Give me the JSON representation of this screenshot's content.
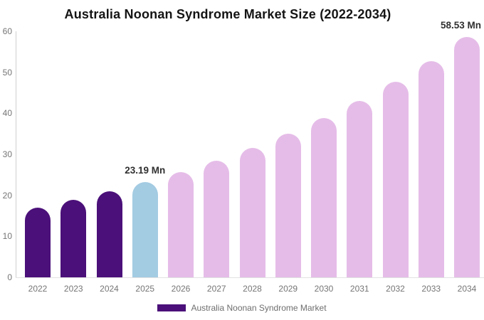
{
  "title": "Australia Noonan Syndrome Market Size (2022-2034)",
  "chart_data": {
    "type": "bar",
    "title": "Australia Noonan Syndrome Market Size (2022-2034)",
    "categories": [
      "2022",
      "2023",
      "2024",
      "2025",
      "2026",
      "2027",
      "2028",
      "2029",
      "2030",
      "2031",
      "2032",
      "2033",
      "2034"
    ],
    "values": [
      17.0,
      18.9,
      20.9,
      23.19,
      25.7,
      28.5,
      31.6,
      35.0,
      38.8,
      43.0,
      47.7,
      52.8,
      58.53
    ],
    "bar_colors": [
      "#4B1079",
      "#4B1079",
      "#4B1079",
      "#A3CBE2",
      "#E5BCE8",
      "#E5BCE8",
      "#E5BCE8",
      "#E5BCE8",
      "#E5BCE8",
      "#E5BCE8",
      "#E5BCE8",
      "#E5BCE8",
      "#E5BCE8"
    ],
    "data_labels": [
      {
        "category": "2025",
        "text": "23.19 Mn"
      },
      {
        "category": "2034",
        "text": "58.53 Mn"
      }
    ],
    "xlabel": "",
    "ylabel": "",
    "ylim": [
      0,
      60
    ],
    "yticks": [
      0,
      10,
      20,
      30,
      40,
      50,
      60
    ],
    "grid": false,
    "legend": {
      "position": "bottom",
      "label": "Australia Noonan Syndrome Market",
      "swatch_color": "#4B1079"
    }
  },
  "colors": {
    "background": "#FFFFFF",
    "historical_bar": "#4B1079",
    "base_year_bar": "#A3CBE2",
    "forecast_bar": "#E5BCE8",
    "axis_line": "#D0D0D0",
    "baseline": "#E2E2E2",
    "tick_label": "#757575",
    "title_text": "#141414",
    "data_label_text": "#303030",
    "legend_text": "#6E6E6E"
  }
}
